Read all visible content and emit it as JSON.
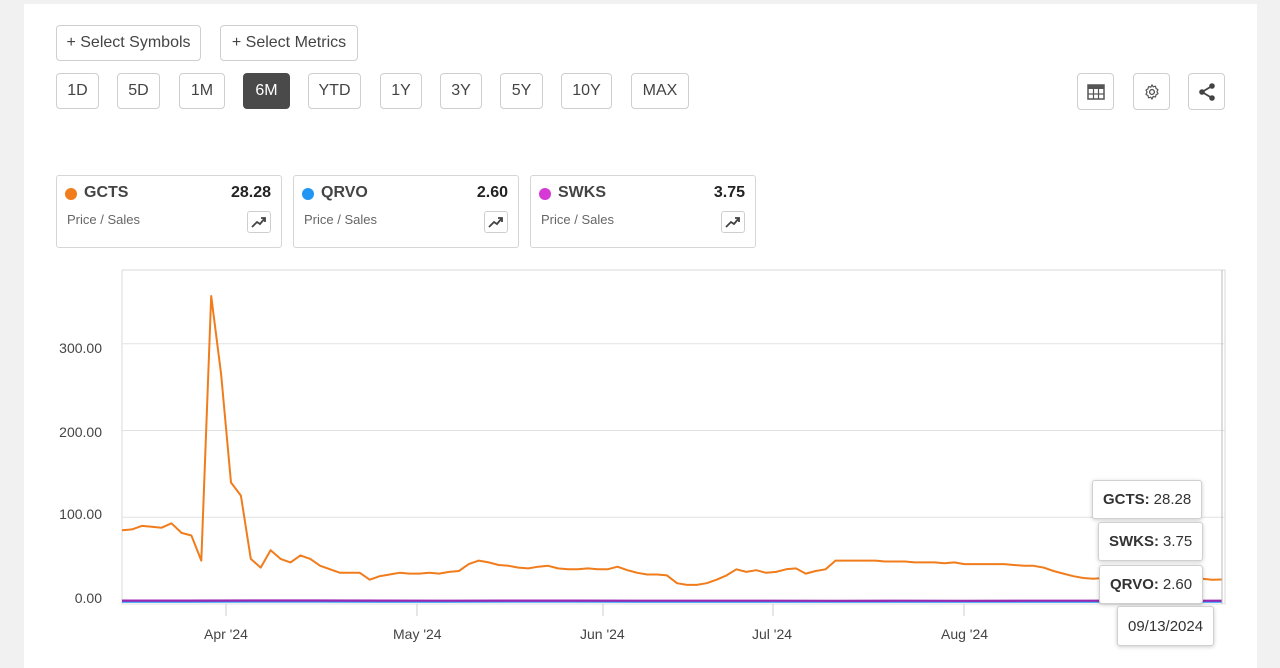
{
  "toolbar": {
    "select_symbols": "+ Select Symbols",
    "select_metrics": "+ Select Metrics",
    "ranges": [
      "1D",
      "5D",
      "1M",
      "6M",
      "YTD",
      "1Y",
      "3Y",
      "5Y",
      "10Y",
      "MAX"
    ],
    "active_range": "6M"
  },
  "icons": [
    "table-icon",
    "gear-icon",
    "share-icon",
    "trend-icon"
  ],
  "cards": [
    {
      "symbol": "GCTS",
      "value": "28.28",
      "metric": "Price / Sales",
      "color": "#f07c1c"
    },
    {
      "symbol": "QRVO",
      "value": "2.60",
      "metric": "Price / Sales",
      "color": "#2196f3"
    },
    {
      "symbol": "SWKS",
      "value": "3.75",
      "metric": "Price / Sales",
      "color": "#d63ad6"
    }
  ],
  "tooltip": {
    "rows": [
      {
        "symbol": "GCTS:",
        "value": "28.28"
      },
      {
        "symbol": "SWKS:",
        "value": "3.75"
      },
      {
        "symbol": "QRVO:",
        "value": "2.60"
      }
    ],
    "date": "09/13/2024"
  },
  "chart_data": {
    "type": "line",
    "y_tick_labels": [
      "0.00",
      "100.00",
      "200.00",
      "300.00"
    ],
    "x_tick_labels": [
      "Apr '24",
      "May '24",
      "Jun '24",
      "Jul '24",
      "Aug '24"
    ],
    "ylim": [
      0,
      385
    ],
    "grid": true,
    "series": [
      {
        "name": "GCTS",
        "color": "#f07c1c",
        "values": [
          85,
          86,
          90,
          89,
          88,
          93,
          82,
          79,
          50,
          355,
          265,
          140,
          125,
          52,
          42,
          62,
          52,
          48,
          56,
          52,
          44,
          40,
          36,
          36,
          36,
          28,
          32,
          34,
          36,
          35,
          35,
          36,
          35,
          37,
          38,
          46,
          50,
          48,
          45,
          44,
          42,
          41,
          43,
          44,
          41,
          40,
          40,
          41,
          40,
          40,
          43,
          39,
          36,
          34,
          34,
          33,
          24,
          22,
          22,
          24,
          28,
          33,
          40,
          37,
          39,
          36,
          37,
          40,
          41,
          35,
          38,
          40,
          50,
          50,
          50,
          50,
          50,
          49,
          49,
          49,
          48,
          48,
          48,
          47,
          48,
          46,
          46,
          46,
          46,
          46,
          45,
          44,
          44,
          42,
          38,
          35,
          32,
          30,
          29,
          30,
          30,
          31,
          33,
          34,
          34,
          32,
          32,
          32,
          30,
          29,
          28,
          28.28
        ]
      },
      {
        "name": "QRVO",
        "color": "#2196f3",
        "values": [
          2.8,
          2.8,
          2.9,
          2.9,
          2.8,
          2.8,
          2.9,
          2.9,
          2.8,
          2.8,
          2.7,
          2.7,
          2.6,
          2.6,
          2.7,
          2.7,
          2.6,
          2.6
        ]
      },
      {
        "name": "SWKS",
        "color": "#9c27b0",
        "values": [
          3.9,
          3.9,
          4.0,
          4.0,
          3.9,
          3.8,
          3.9,
          3.9,
          3.8,
          3.8,
          3.8,
          3.7,
          3.8,
          3.7,
          3.8,
          3.8,
          3.7,
          3.75
        ]
      }
    ]
  }
}
